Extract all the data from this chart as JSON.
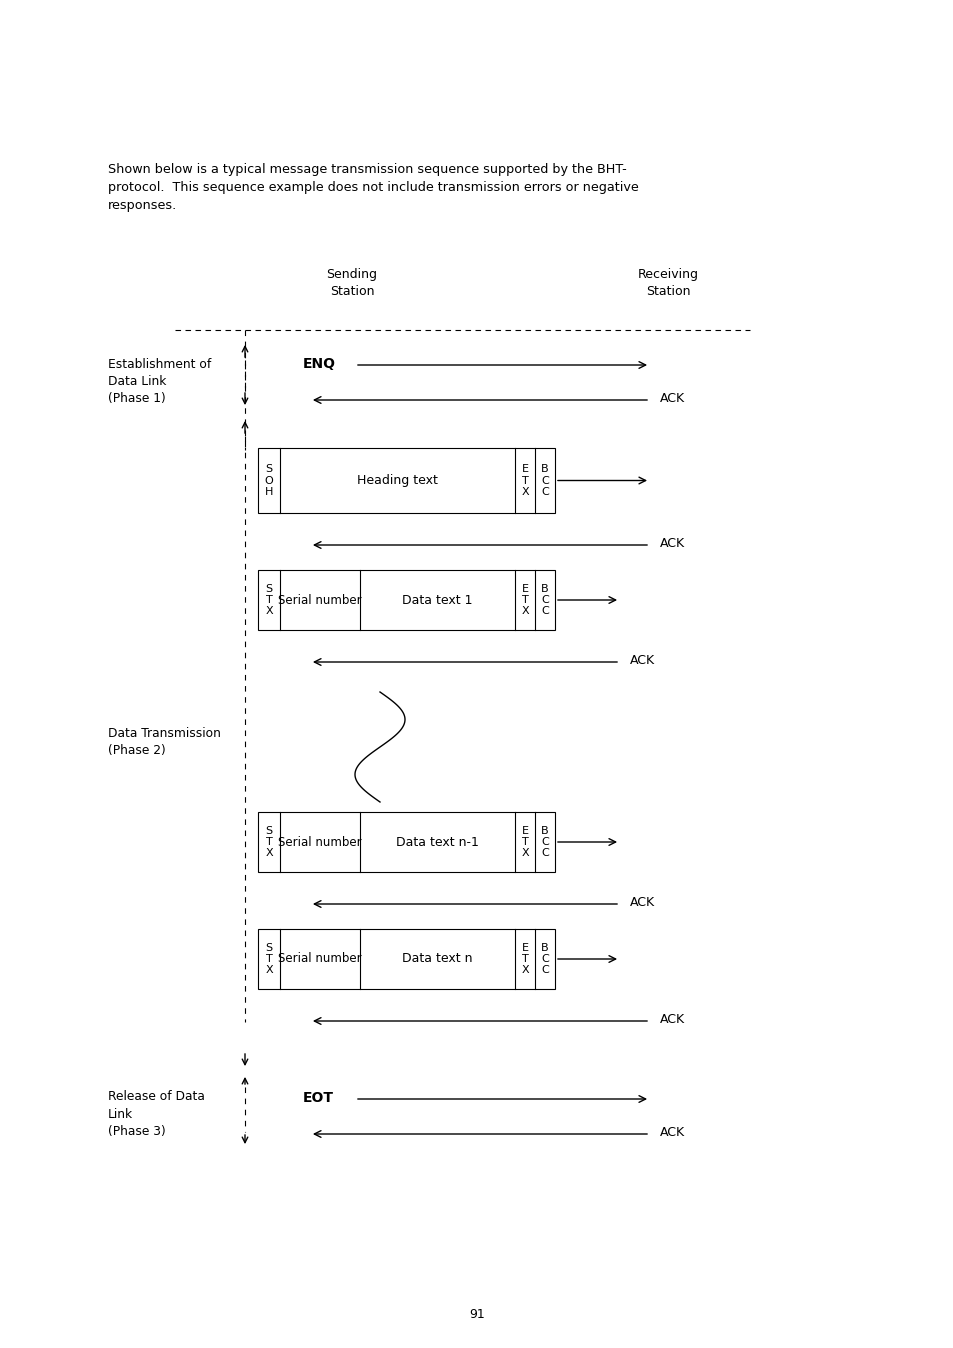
{
  "bg_color": "#ffffff",
  "text_color": "#000000",
  "fig_width": 9.54,
  "fig_height": 13.48,
  "dpi": 100,
  "intro_text_line1": "Shown below is a typical message transmission sequence supported by the BHT-",
  "intro_text_line2": "protocol.  This sequence example does not include transmission errors or negative",
  "intro_text_line3": "responses.",
  "page_number": "91",
  "sending_station_label": "Sending\nStation",
  "receiving_station_label": "Receiving\nStation",
  "phase1_label_line1": "Establishment of",
  "phase1_label_line2": "Data Link",
  "phase1_label_line3": "(Phase 1)",
  "phase2_label_line1": "Data Transmission",
  "phase2_label_line2": "(Phase 2)",
  "phase3_label_line1": "Release of Data",
  "phase3_label_line2": "Link",
  "phase3_label_line3": "(Phase 3)"
}
